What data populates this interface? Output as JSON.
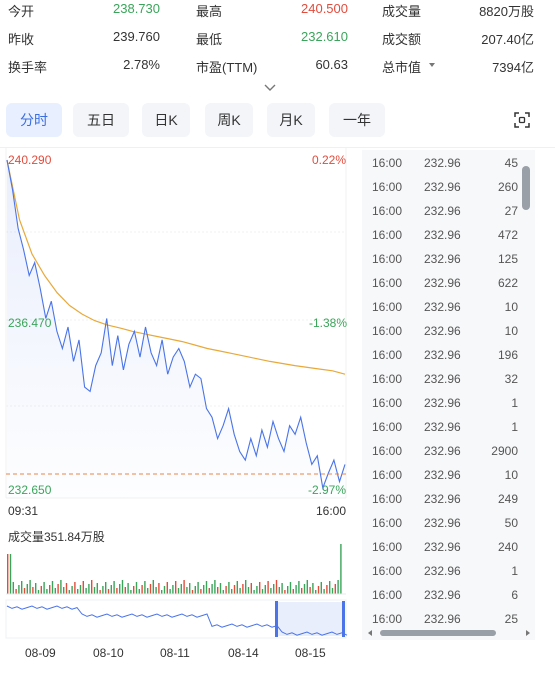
{
  "stats": [
    {
      "label": "今开",
      "value": "238.730",
      "color": "green"
    },
    {
      "label": "最高",
      "value": "240.500",
      "color": "red"
    },
    {
      "label": "成交量",
      "value": "8820万股",
      "color": "dark"
    },
    {
      "label": "昨收",
      "value": "239.760",
      "color": "dark"
    },
    {
      "label": "最低",
      "value": "232.610",
      "color": "green"
    },
    {
      "label": "成交额",
      "value": "207.40亿",
      "color": "dark"
    },
    {
      "label": "换手率",
      "value": "2.78%",
      "color": "dark"
    },
    {
      "label": "市盈(TTM)",
      "value": "60.63",
      "color": "dark"
    },
    {
      "label": "总市值",
      "value": "7394亿",
      "color": "dark",
      "has_dropdown": true
    }
  ],
  "tabs": [
    {
      "label": "分时",
      "active": true
    },
    {
      "label": "五日",
      "active": false
    },
    {
      "label": "日K",
      "active": false
    },
    {
      "label": "周K",
      "active": false
    },
    {
      "label": "月K",
      "active": false
    },
    {
      "label": "一年",
      "active": false
    }
  ],
  "chart": {
    "price_high": "240.290",
    "pct_high": "0.22%",
    "price_mid": "236.470",
    "pct_mid": "-1.38%",
    "price_low": "232.650",
    "pct_low": "-2.97%",
    "time_start": "09:31",
    "time_end": "16:00",
    "volume_label": "成交量351.84万股",
    "dates": [
      "08-09",
      "08-10",
      "08-11",
      "08-14",
      "08-15"
    ]
  },
  "chart_data": {
    "type": "line",
    "ylim": [
      232.65,
      240.29
    ],
    "series": [
      {
        "values": [
          240.29,
          239.6,
          238.7,
          238.2,
          237.6,
          237.9,
          237.3,
          236.6,
          237.0,
          236.3,
          235.9,
          236.4,
          235.6,
          236.1,
          235.0,
          234.9,
          235.5,
          235.8,
          236.6,
          235.5,
          236.2,
          235.4,
          236.0,
          236.3,
          235.7,
          236.4,
          235.8,
          235.5,
          236.1,
          235.3,
          235.7,
          235.9,
          235.6,
          235.0,
          235.3,
          235.2,
          234.5,
          234.3,
          233.8,
          234.1,
          234.5,
          233.9,
          233.5,
          233.3,
          233.8,
          233.4,
          234.0,
          233.6,
          234.2,
          233.8,
          233.5,
          234.1,
          233.9,
          234.3,
          233.7,
          233.2,
          233.4,
          232.65,
          233.0,
          233.3,
          232.8,
          233.2
        ]
      },
      {
        "values": [
          240.29,
          238.9,
          238.1,
          237.6,
          237.2,
          236.9,
          236.7,
          236.55,
          236.45,
          236.38,
          236.3,
          236.24,
          236.18,
          236.12,
          236.06,
          235.98,
          235.9,
          235.84,
          235.78,
          235.72,
          235.66,
          235.6,
          235.55,
          235.5,
          235.46,
          235.42,
          235.38,
          235.3
        ]
      }
    ]
  },
  "trades": [
    {
      "time": "16:00",
      "price": "232.96",
      "volume": "45"
    },
    {
      "time": "16:00",
      "price": "232.96",
      "volume": "260"
    },
    {
      "time": "16:00",
      "price": "232.96",
      "volume": "27"
    },
    {
      "time": "16:00",
      "price": "232.96",
      "volume": "472"
    },
    {
      "time": "16:00",
      "price": "232.96",
      "volume": "125"
    },
    {
      "time": "16:00",
      "price": "232.96",
      "volume": "622"
    },
    {
      "time": "16:00",
      "price": "232.96",
      "volume": "10"
    },
    {
      "time": "16:00",
      "price": "232.96",
      "volume": "10"
    },
    {
      "time": "16:00",
      "price": "232.96",
      "volume": "196"
    },
    {
      "time": "16:00",
      "price": "232.96",
      "volume": "32"
    },
    {
      "time": "16:00",
      "price": "232.96",
      "volume": "1"
    },
    {
      "time": "16:00",
      "price": "232.96",
      "volume": "1"
    },
    {
      "time": "16:00",
      "price": "232.96",
      "volume": "2900"
    },
    {
      "time": "16:00",
      "price": "232.96",
      "volume": "10"
    },
    {
      "time": "16:00",
      "price": "232.96",
      "volume": "249"
    },
    {
      "time": "16:00",
      "price": "232.96",
      "volume": "50"
    },
    {
      "time": "16:00",
      "price": "232.96",
      "volume": "240"
    },
    {
      "time": "16:00",
      "price": "232.96",
      "volume": "1"
    },
    {
      "time": "16:00",
      "price": "232.96",
      "volume": "6"
    },
    {
      "time": "16:00",
      "price": "232.96",
      "volume": "25"
    }
  ],
  "colors": {
    "up": "#e24c3c",
    "down": "#3aa55a",
    "price_line": "#4a74e8",
    "avg_line": "#e8a93a",
    "accent": "#3b6fe0"
  },
  "icons": {
    "expand": "chevron-down-icon",
    "fullscreen": "fullscreen-icon"
  }
}
